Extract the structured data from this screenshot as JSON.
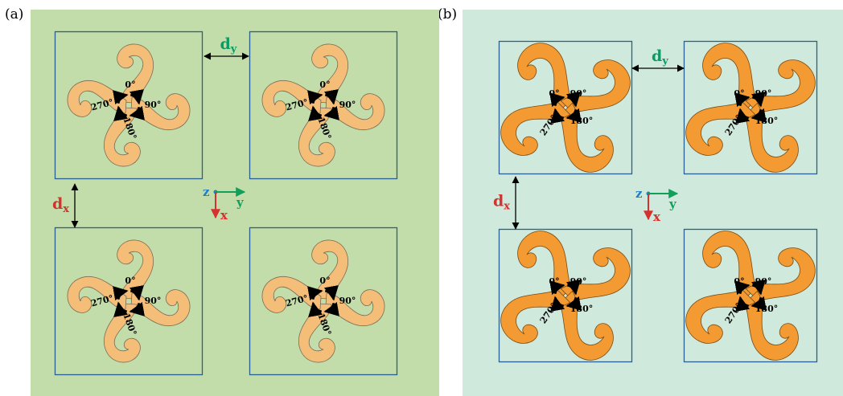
{
  "panels": [
    {
      "label": "(a)",
      "background": "#c2dcaa",
      "arm_fill": "#f5be78",
      "arm_stroke": "#7a6b55",
      "cell_border": "#2b5f8f",
      "angles": [
        "0°",
        "90°",
        "180°",
        "270°"
      ],
      "dy_label": "d",
      "dy_sub": "y",
      "dx_label": "d",
      "dx_sub": "x"
    },
    {
      "label": "(b)",
      "background": "#cfe9dc",
      "arm_fill": "#f39a32",
      "arm_stroke": "#7a4a10",
      "cell_border": "#2b5f8f",
      "angles": [
        "0°",
        "90°",
        "180°",
        "270°"
      ],
      "dy_label": "d",
      "dy_sub": "y",
      "dx_label": "d",
      "dx_sub": "x"
    }
  ],
  "axes": {
    "z": "z",
    "y": "y",
    "x": "x"
  },
  "colors": {
    "dy": "#0f9a63",
    "dx": "#d4322e",
    "z": "#1f7fc7",
    "y": "#11a05a",
    "x": "#d4322e"
  }
}
